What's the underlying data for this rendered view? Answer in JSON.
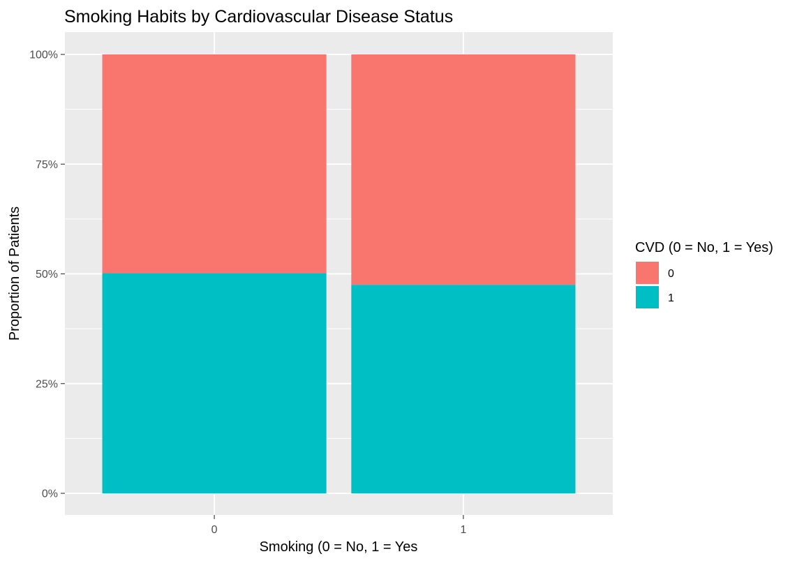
{
  "chart_data": {
    "type": "bar",
    "stacked": true,
    "title": "Smoking Habits by Cardiovascular Disease Status",
    "xlabel": "Smoking (0 = No, 1 = Yes",
    "ylabel": "Proportion of Patients",
    "categories": [
      "0",
      "1"
    ],
    "ylim": [
      0,
      1
    ],
    "yticks": [
      0,
      0.25,
      0.5,
      0.75,
      1
    ],
    "ytick_labels": [
      "0%",
      "25%",
      "50%",
      "75%",
      "100%"
    ],
    "grid": true,
    "legend": {
      "title": "CVD (0 = No, 1 = Yes)",
      "placement": "right"
    },
    "series": [
      {
        "name": "0",
        "color": "#F8766D",
        "values": [
          0.498,
          0.525
        ]
      },
      {
        "name": "1",
        "color": "#00BFC4",
        "values": [
          0.502,
          0.475
        ]
      }
    ],
    "stack_order": [
      "1",
      "0"
    ],
    "legend_order": [
      "0",
      "1"
    ],
    "panel_background": "#EBEBEB",
    "gridline_color": "#FFFFFF"
  }
}
